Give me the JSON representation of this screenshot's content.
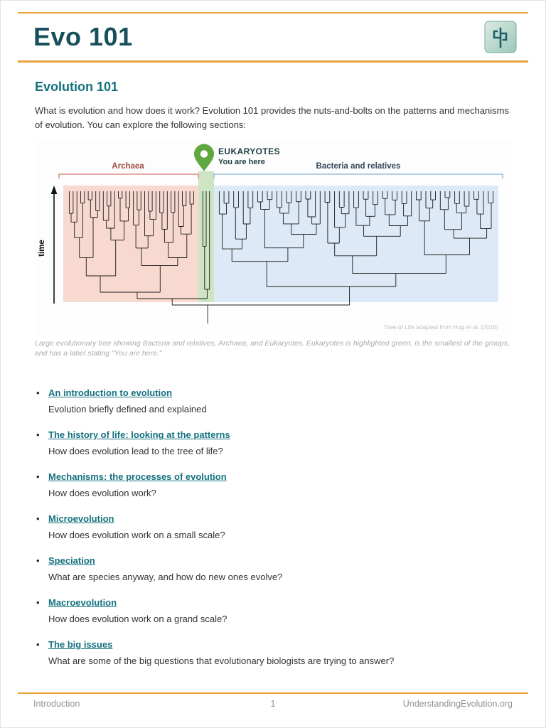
{
  "header": {
    "title": "Evo 101",
    "logo_icon": "tree-logo-icon"
  },
  "content": {
    "heading": "Evolution 101",
    "intro": "What is evolution and how does it work? Evolution 101 provides the nuts-and-bolts on the patterns and mechanisms of evolution. You can explore the following sections:",
    "sections": [
      {
        "label": "An introduction to evolution",
        "desc": "Evolution briefly defined and explained"
      },
      {
        "label": "The history of life: looking at the patterns",
        "desc": "How does evolution lead to the tree of life?"
      },
      {
        "label": "Mechanisms: the processes of evolution",
        "desc": "How does evolution work?"
      },
      {
        "label": "Microevolution",
        "desc": "How does evolution work on a small scale?"
      },
      {
        "label": "Speciation",
        "desc": "What are species anyway, and how do new ones evolve?"
      },
      {
        "label": "Macroevolution",
        "desc": "How does evolution work on a grand scale?"
      },
      {
        "label": "The big issues",
        "desc": "What are some of the big questions that evolutionary biologists are trying to answer?"
      }
    ]
  },
  "figure": {
    "labels": {
      "archaea": "Archaea",
      "eukaryotes": "EUKARYOTES",
      "you_are_here": "You are here",
      "bacteria": "Bacteria and relatives",
      "time": "time"
    },
    "credit": "Tree of Life adapted from Hug et al. (2016)",
    "caption": "Large evolutionary tree showing Bacteria and relatives, Archaea, and Eukaryotes. Eukaryotes is highlighted green, is the smallest of the groups, and has a label stating \"You are here.\"",
    "tree": {
      "archaea_leaves": 34,
      "eukaryote_leaves": 3,
      "bacteria_leaves": 58
    }
  },
  "footer": {
    "left": "Introduction",
    "page": "1",
    "right": "UnderstandingEvolution.org"
  },
  "colors": {
    "accent_orange": "#E9A13B",
    "title_teal": "#17505A",
    "heading_teal": "#13717F",
    "archaea_red": "#A04A42",
    "bacteria_navy": "#32465A",
    "pin_green": "#5FA83F",
    "region_pink": "#F7D9CF",
    "region_green": "#CDE5C2",
    "region_blue": "#DDE9F6",
    "bracket_red": "#DE9287",
    "bracket_blue": "#9CBEDC"
  }
}
